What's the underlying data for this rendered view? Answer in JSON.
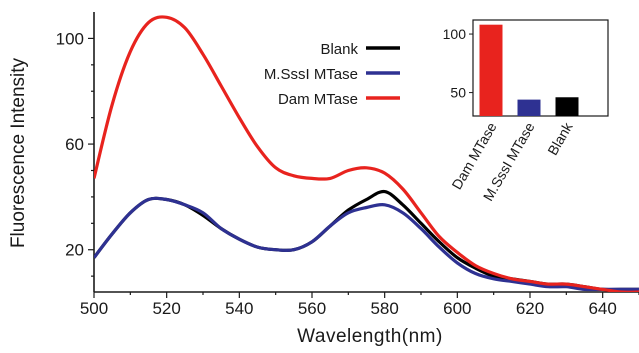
{
  "chart_data": [
    {
      "type": "line",
      "xlabel": "Wavelength(nm)",
      "ylabel": "Fluorescence Intensity",
      "xlim": [
        500,
        650
      ],
      "ylim": [
        4,
        110
      ],
      "x_ticks": [
        500,
        520,
        540,
        560,
        580,
        600,
        620,
        640
      ],
      "y_ticks": [
        20,
        60,
        100
      ],
      "grid": false,
      "legend_position": "top-center",
      "x": [
        500,
        505,
        510,
        515,
        520,
        525,
        530,
        535,
        540,
        545,
        550,
        555,
        560,
        565,
        570,
        575,
        580,
        585,
        590,
        595,
        600,
        605,
        610,
        615,
        620,
        625,
        630,
        635,
        640,
        645,
        650
      ],
      "series": [
        {
          "name": "Blank",
          "color": "#000000",
          "values": [
            17,
            26,
            34,
            39,
            39,
            37,
            33,
            28,
            24,
            21,
            20,
            20,
            23,
            29,
            35,
            39,
            42,
            37,
            30,
            23,
            17,
            13,
            10,
            9,
            8,
            7,
            7,
            6,
            5,
            5,
            5
          ]
        },
        {
          "name": "M.SssI  MTase",
          "color": "#2e3192",
          "values": [
            17,
            26,
            34,
            39,
            39,
            37,
            34,
            28,
            24,
            21,
            20,
            20,
            23,
            29,
            34,
            36,
            37,
            34,
            28,
            21,
            15,
            11,
            9,
            8,
            7,
            6,
            6,
            5,
            5,
            5,
            5
          ]
        },
        {
          "name": "Dam  MTase",
          "color": "#e8231e",
          "values": [
            47,
            75,
            95,
            106,
            108,
            104,
            94,
            82,
            70,
            59,
            51,
            48,
            47,
            47,
            50,
            51,
            49,
            43,
            34,
            25,
            19,
            14,
            11,
            9,
            8,
            7,
            7,
            6,
            5,
            4,
            4
          ]
        }
      ]
    },
    {
      "type": "bar",
      "categories": [
        "Dam  MTase",
        "M.SssI  MTase",
        "Blank"
      ],
      "values": [
        108,
        44,
        46
      ],
      "colors": [
        "#e8231e",
        "#2e3192",
        "#000000"
      ],
      "ylim": [
        30,
        112
      ],
      "y_ticks": [
        50,
        100
      ],
      "grid": false
    }
  ]
}
